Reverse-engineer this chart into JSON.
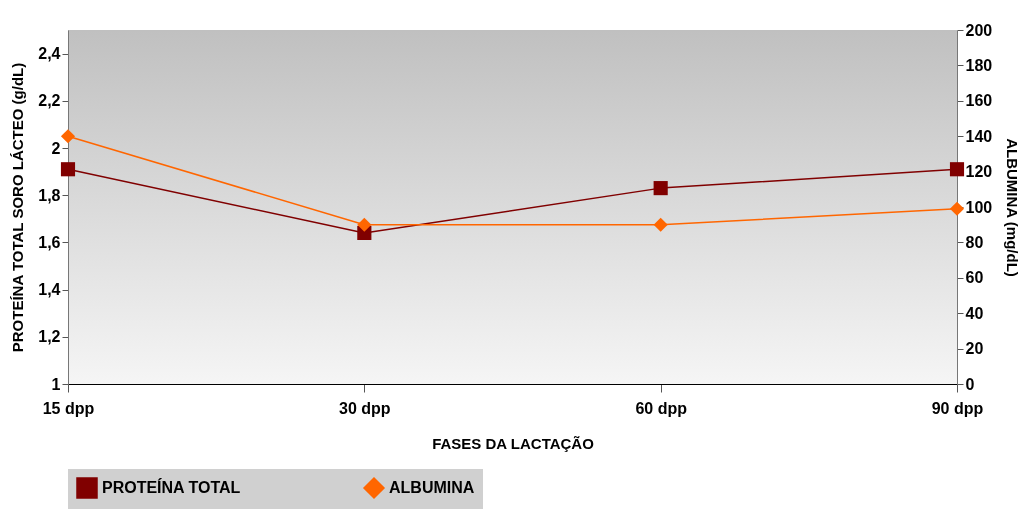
{
  "chart_data": {
    "type": "line",
    "xlabel": "FASES DA LACTAÇÃO",
    "ylabel": "PROTEÍNA TOTAL SORO LÁCTEO (g/dL)",
    "y2label": "ALBUMINA (mg/dL)",
    "categories": [
      "15 dpp",
      "30 dpp",
      "60 dpp",
      "90 dpp"
    ],
    "series": [
      {
        "name": "PROTEÍNA TOTAL",
        "color": "#800000",
        "values": [
          1.91,
          1.64,
          1.83,
          1.91
        ],
        "marker": "square"
      },
      {
        "name": "ALBUMINA",
        "color": "#ff6600",
        "values": [
          140,
          90,
          90,
          99
        ],
        "axis": "y2",
        "marker": "diamond"
      }
    ],
    "ylim": [
      1,
      2.5
    ],
    "yticks": [
      1,
      {
        "value": 1.2,
        "label": "1,2"
      },
      {
        "value": 1.4,
        "label": "1,4"
      },
      {
        "value": 1.6,
        "label": "1,6"
      },
      {
        "value": 1.8,
        "label": "1,8"
      },
      2,
      {
        "value": 2.2,
        "label": "2,2"
      },
      {
        "value": 2.4,
        "label": "2,4"
      }
    ],
    "y2lim": [
      0,
      200
    ],
    "y2ticks": [
      0,
      20,
      40,
      60,
      80,
      100,
      120,
      140,
      160,
      180,
      200
    ],
    "grid": false,
    "legend": "bottom"
  }
}
